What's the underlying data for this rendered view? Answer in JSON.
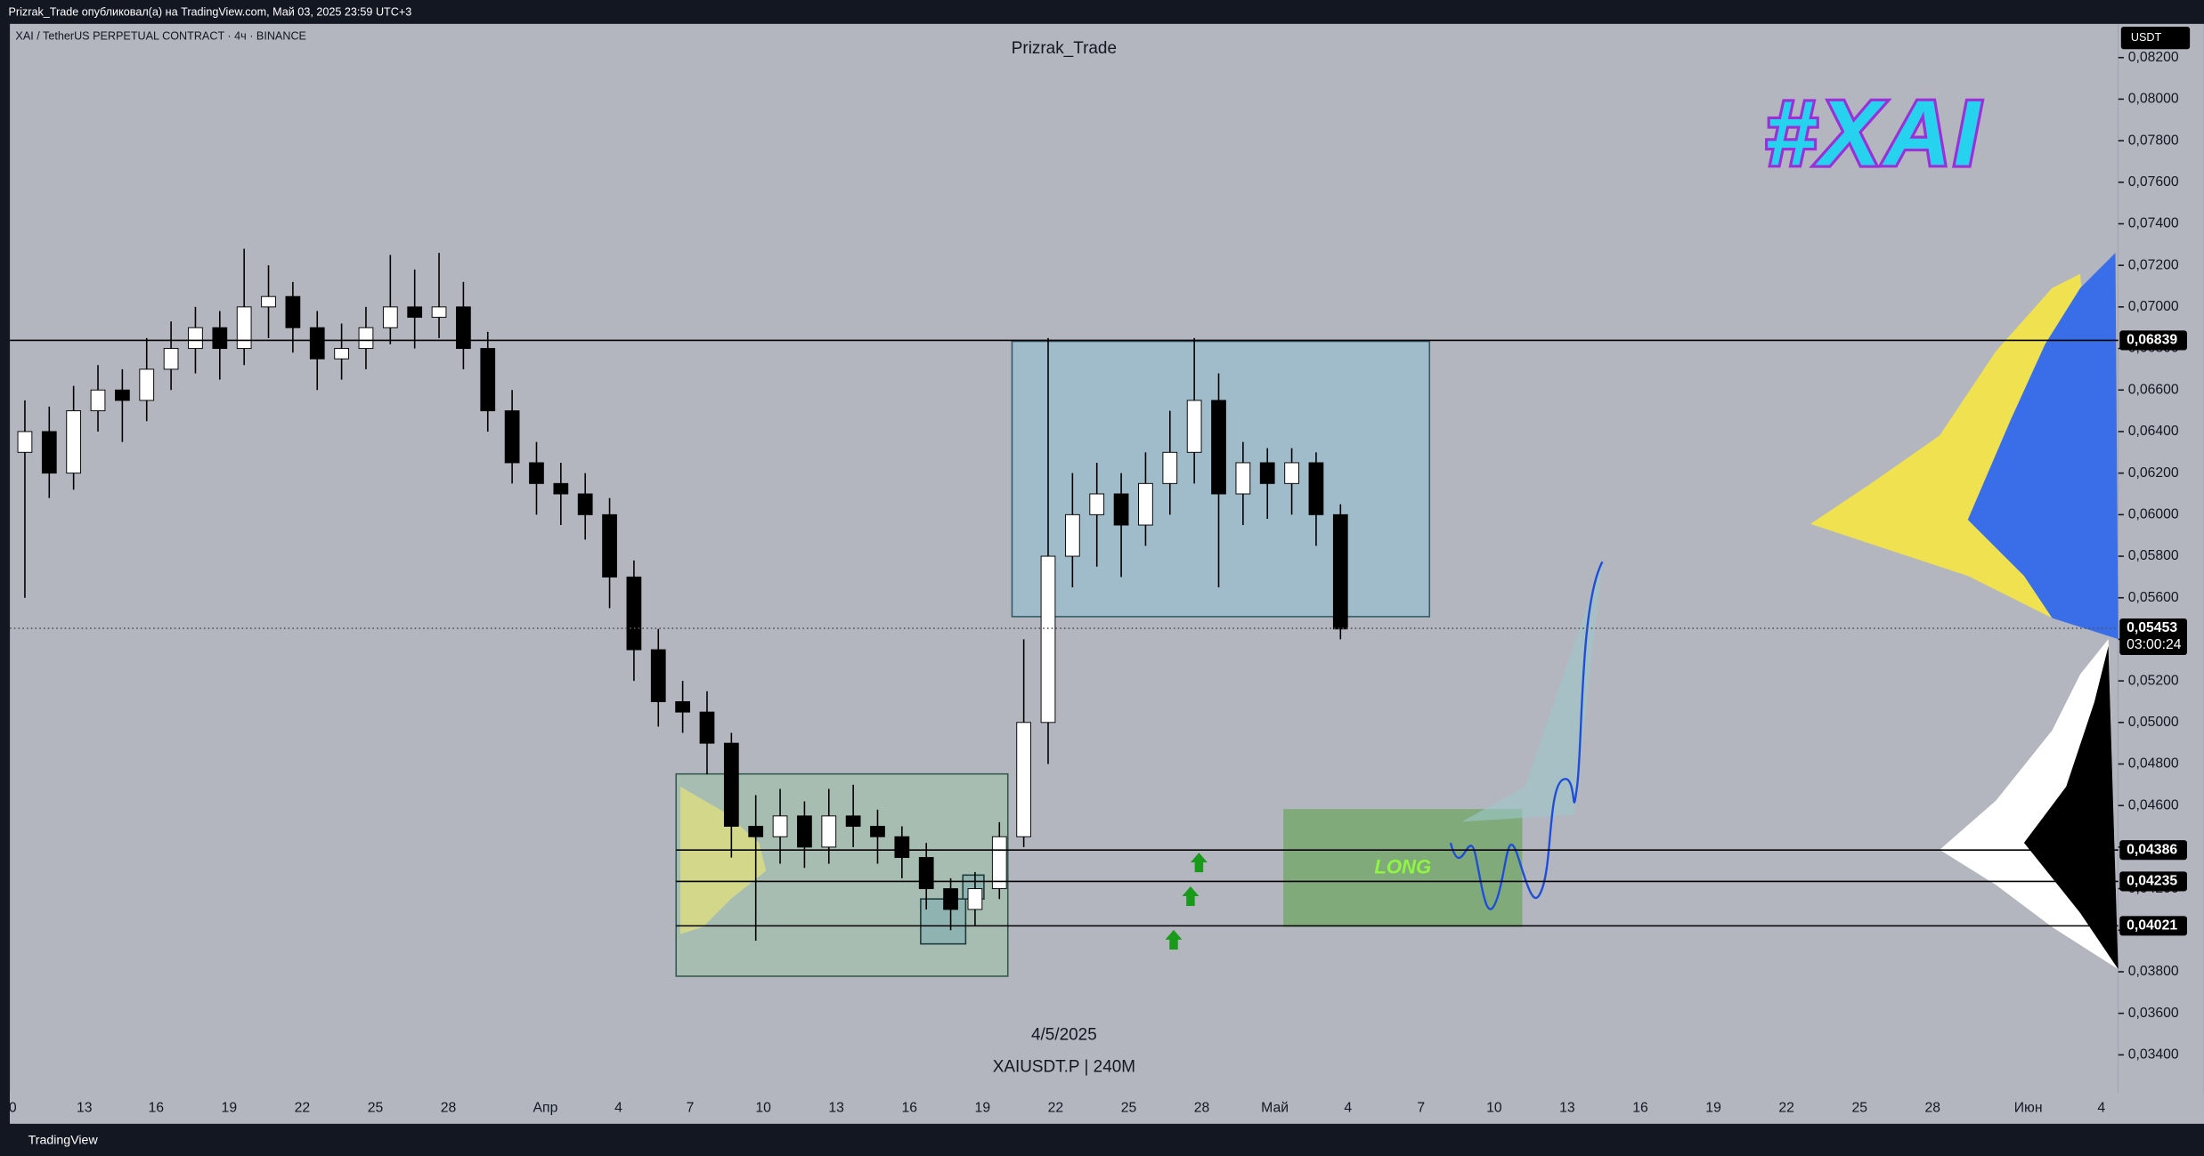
{
  "header": "Prizrak_Trade опубликовал(а) на TradingView.com, Май 03, 2025 23:59 UTC+3",
  "footer": "TradingView",
  "chart_data": {
    "type": "candlestick",
    "symbol": "XAI / TetherUS PERPETUAL CONTRACT · 4ч · BINANCE",
    "title": "Prizrak_Trade",
    "currency": "USDT",
    "logo": "#XAI",
    "date_label": "4/5/2025",
    "ticker_label": "XAIUSDT.P | 240M",
    "annotation": "LONG",
    "open": [
      0.063,
      0.064,
      0.062,
      0.065,
      0.066,
      0.0655,
      0.067,
      0.068,
      0.069,
      0.068,
      0.07,
      0.0705,
      0.069,
      0.0675,
      0.068,
      0.069,
      0.07,
      0.0695,
      0.07,
      0.068,
      0.065,
      0.0625,
      0.0615,
      0.061,
      0.06,
      0.057,
      0.0535,
      0.051,
      0.0505,
      0.049,
      0.045,
      0.0445,
      0.0455,
      0.044,
      0.0455,
      0.045,
      0.0445,
      0.0435,
      0.042,
      0.041,
      0.042,
      0.0445,
      0.05,
      0.058,
      0.06,
      0.061,
      0.0595,
      0.0615,
      0.063,
      0.0655,
      0.061,
      0.0625,
      0.0615,
      0.0625,
      0.06
    ],
    "high": [
      0.0655,
      0.0652,
      0.0662,
      0.0672,
      0.067,
      0.0685,
      0.0693,
      0.07,
      0.0698,
      0.0728,
      0.072,
      0.0712,
      0.0698,
      0.0692,
      0.07,
      0.0725,
      0.0718,
      0.0726,
      0.0712,
      0.0688,
      0.066,
      0.0635,
      0.0625,
      0.062,
      0.0608,
      0.0578,
      0.0545,
      0.052,
      0.0515,
      0.0495,
      0.0465,
      0.0468,
      0.0462,
      0.0468,
      0.047,
      0.0458,
      0.045,
      0.0442,
      0.0425,
      0.0428,
      0.0452,
      0.054,
      0.0685,
      0.062,
      0.0625,
      0.062,
      0.063,
      0.065,
      0.0685,
      0.0668,
      0.0635,
      0.0632,
      0.0632,
      0.063,
      0.0605
    ],
    "low": [
      0.056,
      0.0608,
      0.0612,
      0.064,
      0.0635,
      0.0645,
      0.066,
      0.0668,
      0.0665,
      0.0672,
      0.0685,
      0.0678,
      0.066,
      0.0665,
      0.067,
      0.0682,
      0.068,
      0.0685,
      0.067,
      0.064,
      0.0615,
      0.06,
      0.0595,
      0.0588,
      0.0555,
      0.052,
      0.0498,
      0.0495,
      0.0475,
      0.0435,
      0.0395,
      0.0432,
      0.043,
      0.0432,
      0.044,
      0.0432,
      0.0425,
      0.041,
      0.04,
      0.0402,
      0.0415,
      0.044,
      0.048,
      0.0565,
      0.0575,
      0.057,
      0.0585,
      0.06,
      0.0615,
      0.0565,
      0.0595,
      0.0598,
      0.06,
      0.0585,
      0.054
    ],
    "close": [
      0.064,
      0.062,
      0.065,
      0.066,
      0.0655,
      0.067,
      0.068,
      0.069,
      0.068,
      0.07,
      0.0705,
      0.069,
      0.0675,
      0.068,
      0.069,
      0.07,
      0.0695,
      0.07,
      0.068,
      0.065,
      0.0625,
      0.0615,
      0.061,
      0.06,
      0.057,
      0.0535,
      0.051,
      0.0505,
      0.049,
      0.045,
      0.0445,
      0.0455,
      0.044,
      0.0455,
      0.045,
      0.0445,
      0.0435,
      0.042,
      0.041,
      0.042,
      0.0445,
      0.05,
      0.058,
      0.06,
      0.061,
      0.0595,
      0.0615,
      0.063,
      0.0655,
      0.061,
      0.0625,
      0.0615,
      0.0625,
      0.06,
      0.0545
    ],
    "up_color": "#ffffff",
    "down_color": "#000000",
    "ylim": [
      0.034,
      0.082
    ],
    "yticks": [
      {
        "value": 0.034,
        "label": "0,03400"
      },
      {
        "value": 0.036,
        "label": "0,03600"
      },
      {
        "value": 0.038,
        "label": "0,03800"
      },
      {
        "value": 0.04,
        "label": "0,04000"
      },
      {
        "value": 0.042,
        "label": "0,04200"
      },
      {
        "value": 0.044,
        "label": "0,04400"
      },
      {
        "value": 0.046,
        "label": "0,04600"
      },
      {
        "value": 0.048,
        "label": "0,04800"
      },
      {
        "value": 0.05,
        "label": "0,05000"
      },
      {
        "value": 0.052,
        "label": "0,05200"
      },
      {
        "value": 0.054,
        "label": "0,05400"
      },
      {
        "value": 0.056,
        "label": "0,05600"
      },
      {
        "value": 0.058,
        "label": "0,05800"
      },
      {
        "value": 0.06,
        "label": "0,06000"
      },
      {
        "value": 0.062,
        "label": "0,06200"
      },
      {
        "value": 0.064,
        "label": "0,06400"
      },
      {
        "value": 0.066,
        "label": "0,06600"
      },
      {
        "value": 0.068,
        "label": "0,06800"
      },
      {
        "value": 0.07,
        "label": "0,07000"
      },
      {
        "value": 0.072,
        "label": "0,07200"
      },
      {
        "value": 0.074,
        "label": "0,07400"
      },
      {
        "value": 0.076,
        "label": "0,07600"
      },
      {
        "value": 0.078,
        "label": "0,07800"
      },
      {
        "value": 0.08,
        "label": "0,08000"
      },
      {
        "value": 0.082,
        "label": "0,08200"
      }
    ],
    "xticks": [
      "0",
      "13",
      "16",
      "19",
      "22",
      "25",
      "28",
      "Апр",
      "4",
      "7",
      "10",
      "13",
      "16",
      "19",
      "22",
      "25",
      "28",
      "Май",
      "4",
      "7",
      "10",
      "13",
      "16",
      "19",
      "22",
      "25",
      "28",
      "Июн",
      "4"
    ],
    "levels": [
      {
        "value": 0.06839,
        "label": "0,06839"
      },
      {
        "value": 0.04386,
        "label": "0,04386"
      },
      {
        "value": 0.04235,
        "label": "0,04235"
      },
      {
        "value": 0.04021,
        "label": "0,04021"
      }
    ],
    "last_price": {
      "value": 0.05453,
      "label": "0,05453"
    },
    "countdown": "03:00:24"
  }
}
